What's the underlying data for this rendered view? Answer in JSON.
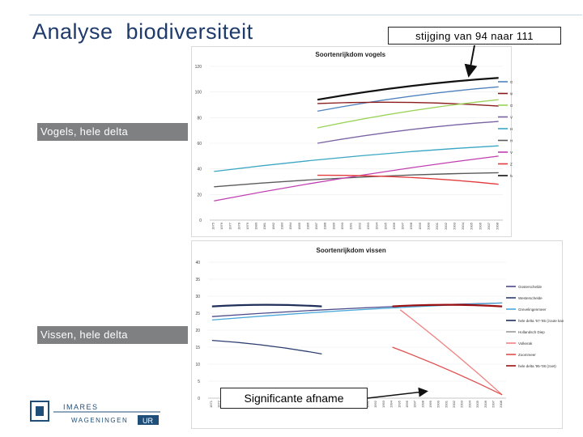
{
  "slide": {
    "title": "Analyse  biodiversiteit",
    "callout": "stijging van 94 naar 111",
    "label_birds": "Vogels, hele delta",
    "label_fish": "Vissen, hele delta",
    "annotation": "Significante afname",
    "logo_top": "IMARES",
    "logo_bottom": "WAGENINGEN",
    "logo_badge": "UR"
  },
  "colors": {
    "title": "#1f3b6b",
    "label_bar": "#7f8082",
    "logo": "#1f4e79"
  },
  "chart_data": [
    {
      "type": "line",
      "title": "Soortenrijkdom vogels",
      "ylim": [
        0,
        120
      ],
      "y_ticks": [
        0,
        20,
        40,
        60,
        80,
        100,
        120
      ],
      "categories": [
        "1975",
        "1976",
        "1977",
        "1978",
        "1979",
        "1980",
        "1981",
        "1982",
        "1983",
        "1984",
        "1985",
        "1986",
        "1987",
        "1988",
        "1989",
        "1990",
        "1991",
        "1992",
        "1993",
        "1994",
        "1995",
        "1996",
        "1997",
        "1998",
        "1999",
        "2000",
        "2001",
        "2002",
        "2003",
        "2004",
        "2005",
        "2006",
        "2007",
        "2008"
      ],
      "series": [
        {
          "name": "Oosterschelde",
          "color": "#4f81bd",
          "x": [
            "1987",
            "2008"
          ],
          "values": [
            85,
            104
          ]
        },
        {
          "name": "Westerschelde",
          "color": "#8b1a1a",
          "x": [
            "1987",
            "2008"
          ],
          "values": [
            91,
            89
          ]
        },
        {
          "name": "Grevelingenmeer",
          "color": "#9bd35a",
          "x": [
            "1987",
            "2008"
          ],
          "values": [
            72,
            94
          ]
        },
        {
          "name": "Veerse meer",
          "color": "#7a62a3",
          "x": [
            "1987",
            "2008"
          ],
          "values": [
            60,
            77
          ]
        },
        {
          "name": "Haringvliet",
          "color": "#3aa6c4",
          "x": [
            "1975",
            "2008"
          ],
          "values": [
            38,
            58
          ]
        },
        {
          "name": "Hollandsch Diep",
          "color": "#5a5a5a",
          "x": [
            "1975",
            "2008"
          ],
          "values": [
            26,
            37
          ]
        },
        {
          "name": "Volkerak",
          "color": "#c03fb0",
          "x": [
            "1975",
            "2008"
          ],
          "values": [
            15,
            50
          ]
        },
        {
          "name": "Zoommeer",
          "color": "#e33b3b",
          "x": [
            "1987",
            "2008"
          ],
          "values": [
            35,
            28
          ]
        },
        {
          "name": "hele delta vanaf '87",
          "color": "#111111",
          "x": [
            "1987",
            "2008"
          ],
          "values": [
            94,
            111
          ]
        }
      ]
    },
    {
      "type": "line",
      "title": "Soortenrijkdom vissen",
      "ylim": [
        0,
        40
      ],
      "y_ticks": [
        0,
        5,
        10,
        15,
        20,
        25,
        30,
        35,
        40
      ],
      "categories": [
        "1971",
        "1972",
        "1973",
        "1974",
        "1975",
        "1976",
        "1977",
        "1978",
        "1979",
        "1980",
        "1981",
        "1982",
        "1983",
        "1984",
        "1985",
        "1986",
        "1987",
        "1988",
        "1989",
        "1990",
        "1991",
        "1992",
        "1993",
        "1994",
        "1995",
        "1996",
        "1997",
        "1998",
        "1999",
        "2000",
        "2001",
        "2002",
        "2003",
        "2004",
        "2005",
        "2006",
        "2007",
        "2008"
      ],
      "series": [
        {
          "name": "Oosterschelde",
          "color": "#4a4a8a",
          "x": [
            "1971",
            "2008"
          ],
          "values": [
            24,
            28
          ]
        },
        {
          "name": "Westerschelde",
          "color": "#2c3e70",
          "x": [
            "1971",
            "1985"
          ],
          "values": [
            17,
            13
          ]
        },
        {
          "name": "Grevelingenmeer",
          "color": "#4aa8d8",
          "x": [
            "1971",
            "2008"
          ],
          "values": [
            23,
            28
          ]
        },
        {
          "name": "hele delta '67-'85 (zoute kant)",
          "color": "#1f2f5a",
          "x": [
            "1971",
            "1985"
          ],
          "values": [
            27,
            27
          ]
        },
        {
          "name": "Hollandsch Diep",
          "color": "#999999",
          "x": [],
          "values": []
        },
        {
          "name": "Volkerak",
          "color": "#f08080",
          "x": [
            "1995",
            "2008"
          ],
          "values": [
            26,
            1
          ]
        },
        {
          "name": "Zoommeer",
          "color": "#e05050",
          "x": [
            "1994",
            "2008"
          ],
          "values": [
            15,
            1
          ]
        },
        {
          "name": "hele delta '95-'08 (zoet)",
          "color": "#9a1010",
          "x": [
            "1994",
            "2008"
          ],
          "values": [
            27,
            27
          ]
        }
      ]
    }
  ]
}
